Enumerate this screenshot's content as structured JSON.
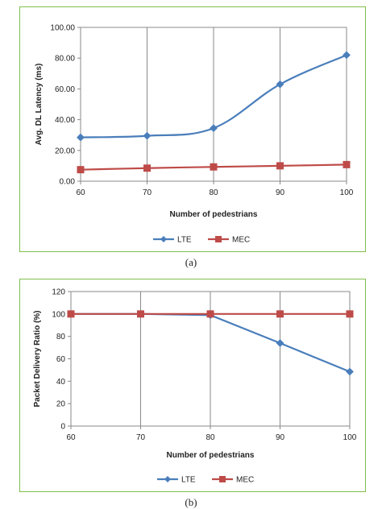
{
  "chart_data": [
    {
      "type": "line",
      "panel_label": "(a)",
      "x": [
        60,
        70,
        80,
        90,
        100
      ],
      "series": [
        {
          "name": "LTE",
          "values": [
            28.5,
            29.5,
            34.5,
            63.0,
            82.0
          ],
          "color": "#4a7ebb",
          "marker": "diamond",
          "smooth": true
        },
        {
          "name": "MEC",
          "values": [
            7.5,
            8.5,
            9.3,
            10.0,
            10.8
          ],
          "color": "#be4b48",
          "marker": "square",
          "smooth": true
        }
      ],
      "xlabel": "Number of pedestrians",
      "ylabel": "Avg. DL Latency (ms)",
      "xlim": [
        60,
        100
      ],
      "ylim": [
        0,
        100
      ],
      "x_ticks": [
        "60",
        "70",
        "80",
        "90",
        "100"
      ],
      "y_ticks": [
        "0.00",
        "20.00",
        "40.00",
        "60.00",
        "80.00",
        "100.00"
      ],
      "grid": "vertical",
      "legend": "bottom"
    },
    {
      "type": "line",
      "panel_label": "(b)",
      "x": [
        60,
        70,
        80,
        90,
        100
      ],
      "series": [
        {
          "name": "LTE",
          "values": [
            100,
            100,
            99,
            74,
            48.5
          ],
          "color": "#4a7ebb",
          "marker": "diamond",
          "smooth": false
        },
        {
          "name": "MEC",
          "values": [
            100,
            100,
            100,
            100,
            100
          ],
          "color": "#be4b48",
          "marker": "square",
          "smooth": false
        }
      ],
      "xlabel": "Number of pedestrians",
      "ylabel": "Packet Delivery Ratio (%)",
      "xlim": [
        60,
        100
      ],
      "ylim": [
        0,
        120
      ],
      "x_ticks": [
        "60",
        "70",
        "80",
        "90",
        "100"
      ],
      "y_ticks": [
        "0",
        "20",
        "40",
        "60",
        "80",
        "100",
        "120"
      ],
      "grid": "vertical",
      "legend": "bottom"
    }
  ]
}
